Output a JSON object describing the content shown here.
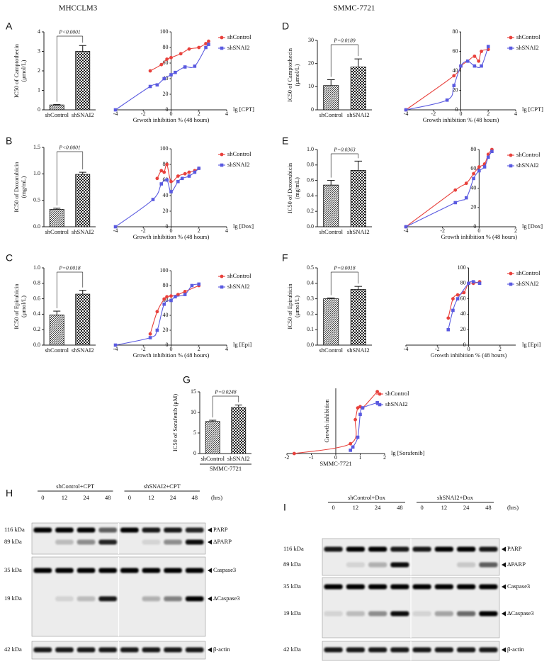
{
  "columns": [
    "MHCCLM3",
    "SMMC-7721"
  ],
  "chart_data": [
    {
      "type": "bar",
      "panel": "A",
      "ylabel": [
        "IC50 of Camptothecin",
        "(μmol/L)"
      ],
      "categories": [
        "shControl",
        "shSNAI2"
      ],
      "values": [
        0.25,
        3.0
      ],
      "errors": [
        0.02,
        0.3
      ],
      "ylim": [
        0,
        4
      ],
      "yticks": [
        0,
        1,
        2,
        3,
        4
      ],
      "annotation": "P<0.0001"
    },
    {
      "type": "scatter",
      "xlabel": "Grwoth inhibition % (48 hours)",
      "xunit": "lg [CPT]",
      "xlim": [
        -4,
        4
      ],
      "xticks": [
        -4,
        -2,
        0,
        2,
        4
      ],
      "ylim": [
        0,
        100
      ],
      "yticks": [
        0,
        20,
        40,
        60,
        80,
        100
      ],
      "series": [
        {
          "name": "shControl",
          "color": "#e8413c",
          "marker": "circle",
          "x": [
            -1.5,
            -0.7,
            -0.3,
            0,
            0.7,
            1.3,
            2,
            2.5,
            2.7
          ],
          "values": [
            50,
            58,
            65,
            67,
            72,
            78,
            80,
            85,
            88
          ]
        },
        {
          "name": "shSNAI2",
          "color": "#5a5ae0",
          "marker": "square",
          "x": [
            -4,
            -1.5,
            -1,
            -0.5,
            0,
            0.3,
            1,
            1.7,
            2.5,
            2.7
          ],
          "values": [
            0,
            30,
            32,
            40,
            45,
            48,
            55,
            56,
            80,
            84
          ]
        }
      ]
    },
    {
      "type": "bar",
      "panel": "B",
      "ylabel": [
        "IC50 of Doxorubicin",
        "(mg/mL)"
      ],
      "categories": [
        "shControl",
        "shSNAI2"
      ],
      "values": [
        0.33,
        0.99
      ],
      "errors": [
        0.02,
        0.04
      ],
      "ylim": [
        0,
        1.5
      ],
      "yticks": [
        {
          "value": 0,
          "label": "0.0"
        },
        {
          "value": 0.5,
          "label": "0.5"
        },
        {
          "value": 1,
          "label": "1.0"
        },
        {
          "value": 1.5,
          "label": "1.5"
        }
      ],
      "annotation": "P<0.0001"
    },
    {
      "type": "scatter",
      "xlabel": "Growth inhibition % (48 hours)",
      "xunit": "lg [Dox]",
      "xlim": [
        -4,
        4
      ],
      "xticks": [
        -4,
        -2,
        0,
        2,
        4
      ],
      "ylim": [
        0,
        100
      ],
      "yticks": [
        0,
        20,
        40,
        60,
        80,
        100
      ],
      "series": [
        {
          "name": "shControl",
          "color": "#e8413c",
          "marker": "circle",
          "x": [
            -1,
            -0.7,
            -0.5,
            -0.3,
            0,
            0.5,
            1,
            1.3,
            1.7,
            2
          ],
          "values": [
            62,
            72,
            70,
            80,
            58,
            65,
            68,
            70,
            72,
            75
          ]
        },
        {
          "name": "shSNAI2",
          "color": "#5a5ae0",
          "marker": "square",
          "x": [
            -4,
            -1.3,
            -0.7,
            -0.3,
            0,
            0.5,
            0.8,
            1.3,
            1.7,
            2
          ],
          "values": [
            0,
            35,
            55,
            60,
            45,
            58,
            62,
            65,
            70,
            75
          ]
        }
      ]
    },
    {
      "type": "bar",
      "panel": "C",
      "ylabel": [
        "IC50 of Epirubicin",
        "(μmol/L)"
      ],
      "categories": [
        "shControl",
        "shSNAI2"
      ],
      "values": [
        0.39,
        0.66
      ],
      "errors": [
        0.05,
        0.05
      ],
      "ylim": [
        0,
        1
      ],
      "yticks": [
        {
          "value": 0,
          "label": "0.0"
        },
        0.2,
        0.4,
        0.6,
        0.8,
        {
          "value": 1,
          "label": "1.0"
        }
      ],
      "annotation": "P=0.0018"
    },
    {
      "type": "scatter",
      "xlabel": "Growth inhibition % (48 hours)",
      "xunit": "lg [Epi]",
      "xlim": [
        -4,
        4
      ],
      "xticks": [
        -4,
        -2,
        0,
        2,
        4
      ],
      "ylim": [
        0,
        100
      ],
      "yticks": [
        0,
        20,
        40,
        60,
        80,
        100
      ],
      "series": [
        {
          "name": "shControl",
          "color": "#e8413c",
          "marker": "circle",
          "x": [
            -1.5,
            -1,
            -0.5,
            -0.3,
            0,
            0.5,
            1,
            2
          ],
          "values": [
            15,
            45,
            62,
            65,
            66,
            68,
            72,
            80
          ]
        },
        {
          "name": "shSNAI2",
          "color": "#5a5ae0",
          "marker": "square",
          "x": [
            -4,
            -1.5,
            -1,
            -0.5,
            0,
            0.3,
            1,
            1.5,
            2
          ],
          "values": [
            0,
            10,
            20,
            55,
            60,
            65,
            68,
            80,
            82
          ]
        }
      ]
    },
    {
      "type": "bar",
      "panel": "D",
      "ylabel": [
        "IC50 of Camptothecin",
        "(μmol/L)"
      ],
      "categories": [
        "shControl",
        "shSNAI2"
      ],
      "values": [
        10.5,
        18.5
      ],
      "errors": [
        2.5,
        3.5
      ],
      "ylim": [
        0,
        30
      ],
      "yticks": [
        0,
        10,
        20,
        30
      ],
      "annotation": "P=0.0189"
    },
    {
      "type": "scatter",
      "xlabel": "Growth inhibition % (48 hours)",
      "xunit": "lg [CPT]",
      "xlim": [
        -4,
        4
      ],
      "xticks": [
        -4,
        -2,
        0,
        2,
        4
      ],
      "ylim": [
        0,
        80
      ],
      "yticks": [
        0,
        20,
        40,
        60,
        80
      ],
      "series": [
        {
          "name": "shControl",
          "color": "#e8413c",
          "marker": "circle",
          "x": [
            -4,
            -0.5,
            0,
            0.5,
            1,
            1.3,
            1.5,
            2
          ],
          "values": [
            0,
            35,
            45,
            50,
            55,
            50,
            60,
            62
          ]
        },
        {
          "name": "shSNAI2",
          "color": "#5a5ae0",
          "marker": "square",
          "x": [
            -4,
            -1,
            -0.5,
            0,
            0.5,
            1,
            1.5,
            2
          ],
          "values": [
            0,
            10,
            25,
            45,
            50,
            45,
            45,
            65
          ]
        }
      ]
    },
    {
      "type": "bar",
      "panel": "E",
      "ylabel": [
        "IC50 of Doxorubicin",
        "(mg/mL)"
      ],
      "categories": [
        "shControl",
        "shSNAI2"
      ],
      "values": [
        0.54,
        0.73
      ],
      "errors": [
        0.06,
        0.12
      ],
      "ylim": [
        0,
        1
      ],
      "yticks": [
        {
          "value": 0,
          "label": "0.0"
        },
        0.2,
        0.4,
        0.6,
        0.8,
        {
          "value": 1,
          "label": "1.0"
        }
      ],
      "annotation": "P=0.0363"
    },
    {
      "type": "scatter",
      "xlabel": "Growth inhibition % (48 hours)",
      "xunit": "lg [Dox]",
      "xlim": [
        -4,
        2
      ],
      "xticks": [
        -4,
        -2,
        0,
        2
      ],
      "ylim": [
        0,
        80
      ],
      "yticks": [
        0,
        20,
        40,
        60,
        80
      ],
      "series": [
        {
          "name": "shControl",
          "color": "#e8413c",
          "marker": "circle",
          "x": [
            -4,
            -1.3,
            -0.7,
            -0.3,
            0,
            0.3,
            0.5,
            0.7
          ],
          "values": [
            0,
            38,
            45,
            55,
            62,
            65,
            75,
            80
          ]
        },
        {
          "name": "shSNAI2",
          "color": "#5a5ae0",
          "marker": "square",
          "x": [
            -4,
            -1.3,
            -0.7,
            -0.3,
            0,
            0.3,
            0.5,
            0.7
          ],
          "values": [
            0,
            25,
            30,
            50,
            58,
            62,
            72,
            78
          ]
        }
      ]
    },
    {
      "type": "bar",
      "panel": "F",
      "ylabel": [
        "IC50 of Epirubicin",
        "(μmol/L)"
      ],
      "categories": [
        "shControl",
        "shSNAI2"
      ],
      "values": [
        0.3,
        0.36
      ],
      "errors": [
        0.005,
        0.02
      ],
      "ylim": [
        0,
        0.5
      ],
      "yticks": [
        {
          "value": 0,
          "label": "0.0"
        },
        0.1,
        0.2,
        0.3,
        0.4,
        0.5
      ],
      "annotation": "P=0.0018"
    },
    {
      "type": "scatter",
      "xlabel": "Growth inhibition % (48 hours)",
      "xunit": "lg [Epi]",
      "xlim": [
        -4,
        3
      ],
      "xticks": [
        -4,
        -2,
        0,
        2
      ],
      "ylim": [
        0,
        100
      ],
      "yticks": [
        0,
        20,
        40,
        60,
        80,
        100
      ],
      "series": [
        {
          "name": "shControl",
          "color": "#e8413c",
          "marker": "circle",
          "x": [
            -1.3,
            -1,
            -0.7,
            -0.3,
            0,
            0.3,
            0.7
          ],
          "values": [
            35,
            60,
            65,
            68,
            80,
            80,
            82
          ]
        },
        {
          "name": "shSNAI2",
          "color": "#5a5ae0",
          "marker": "square",
          "x": [
            -1.3,
            -1,
            -0.7,
            0,
            0.3,
            0.7
          ],
          "values": [
            20,
            45,
            60,
            80,
            82,
            80
          ]
        }
      ]
    },
    {
      "type": "bar",
      "panel": "G",
      "ylabel": [
        "IC50 of Sorafenib (μM)"
      ],
      "categories": [
        "shControl",
        "shSNAI2"
      ],
      "values": [
        7.8,
        11.2
      ],
      "errors": [
        0.3,
        0.6
      ],
      "ylim": [
        0,
        15
      ],
      "yticks": [
        0,
        5,
        10,
        15
      ],
      "annotation": "P=0.0248",
      "xlabel": "SMMC-7721"
    },
    {
      "type": "scatter",
      "ylabel": "Growth inhibition",
      "xlabel": "SMMC-7721",
      "xunit": "lg [Sorafenib]",
      "xlim": [
        -2,
        2
      ],
      "xticks": [
        -2,
        -1,
        0,
        1,
        2
      ],
      "ylim": [
        0,
        100
      ],
      "series": [
        {
          "name": "shControl",
          "color": "#e8413c",
          "marker": "circle",
          "x": [
            -1.7,
            0.6,
            0.8,
            0.9,
            1,
            1.1,
            1.7
          ],
          "values": [
            0,
            15,
            52,
            70,
            72,
            70,
            95
          ]
        },
        {
          "name": "shSNAI2",
          "color": "#5a5ae0",
          "marker": "square",
          "x": [
            0.6,
            0.7,
            0.9,
            1,
            1.1,
            1.7
          ],
          "values": [
            5,
            10,
            25,
            60,
            70,
            78
          ]
        }
      ]
    }
  ],
  "blots": [
    {
      "panel": "H",
      "unit": "(hrs)",
      "groups": [
        {
          "name": "shControl+CPT",
          "times": [
            "0",
            "12",
            "24",
            "48"
          ]
        },
        {
          "name": "shSNAI2+CPT",
          "times": [
            "0",
            "12",
            "24",
            "48"
          ]
        }
      ],
      "rows": [
        {
          "marker": "116 kDa",
          "protein": "PARP"
        },
        {
          "marker": "89 kDa",
          "protein": "ΔPARP"
        },
        {
          "marker": "35 kDa",
          "protein": "Caspase3"
        },
        {
          "marker": "19 kDa",
          "protein": "ΔCaspase3"
        },
        {
          "marker": "42 kDa",
          "protein": "β-actin"
        }
      ]
    },
    {
      "panel": "I",
      "unit": "(hrs)",
      "groups": [
        {
          "name": "shControl+Dox",
          "times": [
            "0",
            "12",
            "24",
            "48"
          ]
        },
        {
          "name": "shSNAI2+Dox",
          "times": [
            "0",
            "12",
            "24",
            "48"
          ]
        }
      ],
      "rows": [
        {
          "marker": "116 kDa",
          "protein": "PARP"
        },
        {
          "marker": "89 kDa",
          "protein": "ΔPARP"
        },
        {
          "marker": "35 kDa",
          "protein": "Caspase3"
        },
        {
          "marker": "19 kDa",
          "protein": "ΔCaspase3"
        },
        {
          "marker": "42 kDa",
          "protein": "β-actin"
        }
      ]
    }
  ]
}
